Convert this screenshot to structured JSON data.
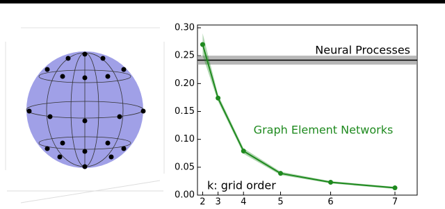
{
  "chart_data": {
    "type": "line",
    "x": [
      2,
      3,
      4,
      5,
      6,
      7
    ],
    "xscale": "power",
    "xpower": 2.5,
    "xlim": [
      1.4,
      7.3
    ],
    "xticks": [
      2,
      3,
      4,
      5,
      6,
      7
    ],
    "ylim": [
      0,
      0.305
    ],
    "yticks": [
      {
        "value": 0,
        "label": "0.00"
      },
      {
        "value": 0.05,
        "label": "0.05"
      },
      {
        "value": 0.1,
        "label": "0.10"
      },
      {
        "value": 0.15,
        "label": "0.15"
      },
      {
        "value": 0.2,
        "label": "0.20"
      },
      {
        "value": 0.25,
        "label": "0.25"
      },
      {
        "value": 0.3,
        "label": "0.30"
      }
    ],
    "series": [
      {
        "name": "Graph Element Networks",
        "color": "#1f8a1f",
        "values": [
          0.27,
          0.174,
          0.079,
          0.039,
          0.023,
          0.013
        ],
        "lower": [
          0.25,
          0.168,
          0.074,
          0.036,
          0.021,
          0.011
        ],
        "upper": [
          0.29,
          0.18,
          0.084,
          0.042,
          0.025,
          0.015
        ]
      }
    ],
    "hline": {
      "name": "Neural Processes",
      "color": "#000000",
      "value": 0.242,
      "lower": 0.234,
      "upper": 0.25
    },
    "x_annotation": "k: grid order"
  }
}
